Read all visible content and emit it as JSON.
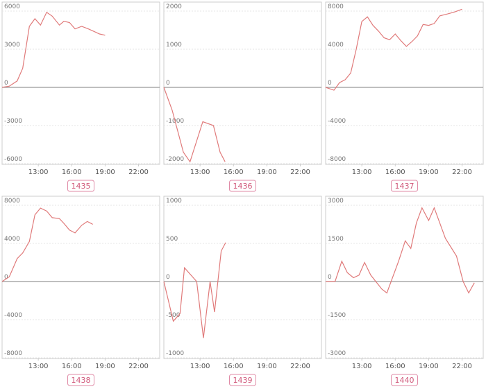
{
  "chart_data": [
    {
      "type": "line",
      "title": "1435",
      "color": "#e07a7a",
      "x": [
        9.75,
        10.4,
        11.1,
        11.6,
        12.2,
        12.7,
        13.2,
        13.75,
        14.25,
        14.9,
        15.3,
        15.8,
        16.3,
        16.9,
        17.5,
        18.0,
        18.5,
        19.0
      ],
      "values": [
        0,
        100,
        500,
        1500,
        4800,
        5400,
        4900,
        5900,
        5600,
        4900,
        5200,
        5100,
        4600,
        4800,
        4600,
        4400,
        4200,
        4100
      ],
      "xlim": [
        9.75,
        23.9
      ],
      "ylim": [
        -6000,
        6000
      ],
      "yticks": [
        -6000,
        -3000,
        0,
        3000,
        6000
      ],
      "xticks": [
        {
          "value": 13,
          "label": "13:00"
        },
        {
          "value": 16,
          "label": "16:00"
        },
        {
          "value": 19,
          "label": "19:00"
        },
        {
          "value": 22,
          "label": "22:00"
        }
      ]
    },
    {
      "type": "line",
      "title": "1436",
      "color": "#e07a7a",
      "x": [
        9.75,
        10.5,
        11.5,
        12.1,
        13.25,
        14.2,
        14.8,
        15.25
      ],
      "values": [
        0,
        -600,
        -1700,
        -1950,
        -900,
        -1000,
        -1700,
        -1950
      ],
      "xlim": [
        9.75,
        23.9
      ],
      "ylim": [
        -2000,
        2000
      ],
      "yticks": [
        -2000,
        -1000,
        0,
        1000,
        2000
      ],
      "xticks": [
        {
          "value": 13,
          "label": "13:00"
        },
        {
          "value": 16,
          "label": "16:00"
        },
        {
          "value": 19,
          "label": "19:00"
        },
        {
          "value": 22,
          "label": "22:00"
        }
      ]
    },
    {
      "type": "line",
      "title": "1437",
      "color": "#e07a7a",
      "x": [
        9.75,
        10.5,
        11.0,
        11.5,
        12.0,
        12.5,
        13.0,
        13.5,
        14.0,
        14.5,
        15.0,
        15.5,
        16.0,
        16.5,
        17.0,
        17.5,
        18.0,
        18.5,
        19.0,
        19.5,
        20.0,
        20.7,
        21.3,
        22.0
      ],
      "values": [
        0,
        -300,
        500,
        800,
        1500,
        4000,
        6900,
        7400,
        6500,
        5900,
        5200,
        5000,
        5600,
        4900,
        4300,
        4800,
        5400,
        6600,
        6500,
        6700,
        7500,
        7700,
        7900,
        8200
      ],
      "xlim": [
        9.75,
        23.9
      ],
      "ylim": [
        -8000,
        8000
      ],
      "yticks": [
        -8000,
        -4000,
        0,
        4000,
        8000
      ],
      "xticks": [
        {
          "value": 13,
          "label": "13:00"
        },
        {
          "value": 16,
          "label": "16:00"
        },
        {
          "value": 19,
          "label": "19:00"
        },
        {
          "value": 22,
          "label": "22:00"
        }
      ]
    },
    {
      "type": "line",
      "title": "1438",
      "color": "#e07a7a",
      "x": [
        9.75,
        10.4,
        11.1,
        11.6,
        12.2,
        12.7,
        13.2,
        13.75,
        14.25,
        14.9,
        15.3,
        15.8,
        16.3,
        16.9,
        17.4,
        17.9
      ],
      "values": [
        0,
        500,
        2400,
        3000,
        4200,
        7000,
        7700,
        7400,
        6700,
        6600,
        6100,
        5400,
        5100,
        5900,
        6300,
        6000
      ],
      "xlim": [
        9.75,
        23.9
      ],
      "ylim": [
        -8000,
        8000
      ],
      "yticks": [
        -8000,
        -4000,
        0,
        4000,
        8000
      ],
      "xticks": [
        {
          "value": 13,
          "label": "13:00"
        },
        {
          "value": 16,
          "label": "16:00"
        },
        {
          "value": 19,
          "label": "19:00"
        },
        {
          "value": 22,
          "label": "22:00"
        }
      ]
    },
    {
      "type": "line",
      "title": "1439",
      "color": "#e07a7a",
      "x": [
        9.75,
        10.6,
        11.2,
        11.6,
        12.7,
        13.3,
        13.9,
        14.3,
        14.9,
        15.3
      ],
      "values": [
        0,
        -520,
        -420,
        180,
        0,
        -740,
        0,
        -400,
        400,
        510
      ],
      "xlim": [
        9.75,
        23.9
      ],
      "ylim": [
        -1000,
        1000
      ],
      "yticks": [
        -1000,
        -500,
        0,
        500,
        1000
      ],
      "xticks": [
        {
          "value": 13,
          "label": "13:00"
        },
        {
          "value": 16,
          "label": "16:00"
        },
        {
          "value": 19,
          "label": "19:00"
        },
        {
          "value": 22,
          "label": "22:00"
        }
      ]
    },
    {
      "type": "line",
      "title": "1440",
      "color": "#e07a7a",
      "x": [
        9.75,
        10.6,
        11.2,
        11.7,
        12.25,
        12.75,
        13.25,
        13.8,
        14.8,
        15.25,
        16.3,
        16.9,
        17.4,
        17.9,
        18.4,
        19.0,
        19.5,
        20.5,
        21.5,
        22.1,
        22.6,
        23.1
      ],
      "values": [
        0,
        0,
        800,
        350,
        150,
        250,
        750,
        250,
        -300,
        -450,
        800,
        1600,
        1300,
        2300,
        2900,
        2400,
        2900,
        1700,
        1000,
        0,
        -450,
        -50
      ],
      "xlim": [
        9.75,
        23.9
      ],
      "ylim": [
        -3000,
        3000
      ],
      "yticks": [
        -3000,
        -1500,
        0,
        1500,
        3000
      ],
      "xticks": [
        {
          "value": 13,
          "label": "13:00"
        },
        {
          "value": 16,
          "label": "16:00"
        },
        {
          "value": 19,
          "label": "19:00"
        },
        {
          "value": 22,
          "label": "22:00"
        }
      ]
    }
  ]
}
